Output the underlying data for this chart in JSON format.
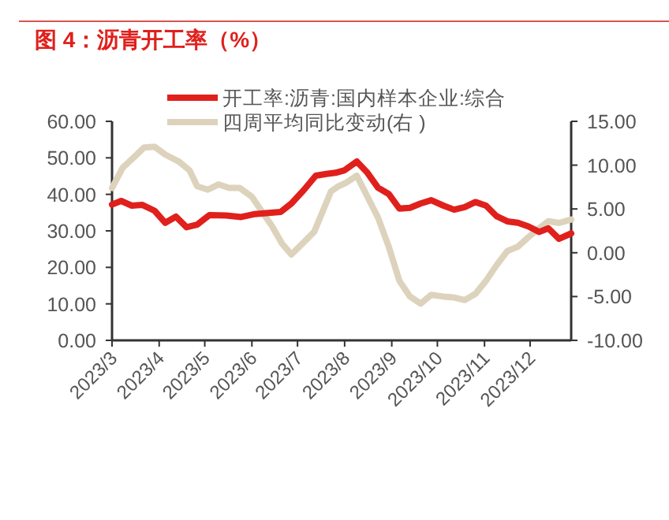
{
  "chart_data": {
    "type": "line",
    "title": "图 4：沥青开工率（%）",
    "series": [
      {
        "name": "开工率:沥青:国内样本企业:综合",
        "color": "#e0201c",
        "x": [
          "2023-03-01",
          "2023-03-07",
          "2023-03-14",
          "2023-03-21",
          "2023-03-29",
          "2023-04-05",
          "2023-04-12",
          "2023-04-19",
          "2023-04-26",
          "2023-05-04",
          "2023-05-15",
          "2023-05-25",
          "2023-06-03",
          "2023-06-12",
          "2023-06-20",
          "2023-06-27",
          "2023-07-05",
          "2023-07-13",
          "2023-07-20",
          "2023-07-26",
          "2023-08-01",
          "2023-08-09",
          "2023-08-16",
          "2023-08-23",
          "2023-08-30",
          "2023-09-06",
          "2023-09-13",
          "2023-09-20",
          "2023-09-27",
          "2023-10-05",
          "2023-10-12",
          "2023-10-19",
          "2023-10-26",
          "2023-11-02",
          "2023-11-09",
          "2023-11-16",
          "2023-11-23",
          "2023-11-30",
          "2023-12-07",
          "2023-12-13",
          "2023-12-20",
          "2023-12-28"
        ],
        "values": [
          37.2,
          38.2,
          36.9,
          37.1,
          35.5,
          32.2,
          33.9,
          31.0,
          31.7,
          34.3,
          34.2,
          33.8,
          34.6,
          34.9,
          35.2,
          37.5,
          41.1,
          45.1,
          45.6,
          45.9,
          46.6,
          49.0,
          45.9,
          41.8,
          40.1,
          36.1,
          36.3,
          37.5,
          38.4,
          36.9,
          35.8,
          36.5,
          37.9,
          36.9,
          34.0,
          32.6,
          32.2,
          31.2,
          29.7,
          30.7,
          27.8,
          29.3
        ]
      },
      {
        "name": "四周平均同比变动(右 )",
        "color": "#ddd3bd",
        "axis": "y2",
        "x": [
          "2023-03-01",
          "2023-03-08",
          "2023-03-16",
          "2023-03-22",
          "2023-03-29",
          "2023-04-05",
          "2023-04-14",
          "2023-04-21",
          "2023-04-26",
          "2023-05-03",
          "2023-05-10",
          "2023-05-17",
          "2023-05-24",
          "2023-06-01",
          "2023-06-08",
          "2023-06-14",
          "2023-06-21",
          "2023-06-27",
          "2023-07-04",
          "2023-07-12",
          "2023-07-18",
          "2023-07-23",
          "2023-07-28",
          "2023-08-02",
          "2023-08-09",
          "2023-08-16",
          "2023-08-23",
          "2023-08-30",
          "2023-09-06",
          "2023-09-13",
          "2023-09-20",
          "2023-09-27",
          "2023-10-05",
          "2023-10-12",
          "2023-10-19",
          "2023-10-26",
          "2023-11-02",
          "2023-11-09",
          "2023-11-16",
          "2023-11-23",
          "2023-11-30",
          "2023-12-07",
          "2023-12-13",
          "2023-12-20",
          "2023-12-28"
        ],
        "values": [
          7.4,
          9.7,
          11.0,
          12.0,
          12.1,
          11.2,
          10.4,
          9.4,
          7.6,
          7.2,
          7.8,
          7.4,
          7.4,
          6.4,
          4.6,
          3.1,
          1.0,
          -0.2,
          1.0,
          2.4,
          4.9,
          7.0,
          7.6,
          8.0,
          8.8,
          6.4,
          4.0,
          0.7,
          -3.2,
          -5.0,
          -5.8,
          -4.8,
          -5.0,
          -5.1,
          -5.4,
          -4.7,
          -3.2,
          -1.4,
          0.2,
          0.7,
          1.8,
          2.8,
          3.6,
          3.4,
          3.8
        ]
      }
    ],
    "xlim": [
      "2023-03-01",
      "2023-12-28"
    ],
    "xticks": [
      {
        "value": "2023-03-01",
        "label": "2023/3"
      },
      {
        "value": "2023-04-01",
        "label": "2023/4"
      },
      {
        "value": "2023-05-01",
        "label": "2023/5"
      },
      {
        "value": "2023-06-01",
        "label": "2023/6"
      },
      {
        "value": "2023-07-01",
        "label": "2023/7"
      },
      {
        "value": "2023-08-01",
        "label": "2023/8"
      },
      {
        "value": "2023-09-01",
        "label": "2023/9"
      },
      {
        "value": "2023-10-01",
        "label": "2023/10"
      },
      {
        "value": "2023-11-01",
        "label": "2023/11"
      },
      {
        "value": "2023-12-01",
        "label": "2023/12"
      }
    ],
    "ylim": [
      0,
      60
    ],
    "yticks": [
      {
        "value": 0,
        "label": "0.00"
      },
      {
        "value": 10,
        "label": "10.00"
      },
      {
        "value": 20,
        "label": "20.00"
      },
      {
        "value": 30,
        "label": "30.00"
      },
      {
        "value": 40,
        "label": "40.00"
      },
      {
        "value": 50,
        "label": "50.00"
      },
      {
        "value": 60,
        "label": "60.00"
      }
    ],
    "y2lim": [
      -10,
      15
    ],
    "y2ticks": [
      {
        "value": -10,
        "label": "-10.00"
      },
      {
        "value": -5,
        "label": "-5.00"
      },
      {
        "value": 0,
        "label": "0.00"
      },
      {
        "value": 5,
        "label": "5.00"
      },
      {
        "value": 10,
        "label": "10.00"
      },
      {
        "value": 15,
        "label": "15.00"
      }
    ],
    "legend": "top",
    "grid": false,
    "line_style": "solid"
  }
}
